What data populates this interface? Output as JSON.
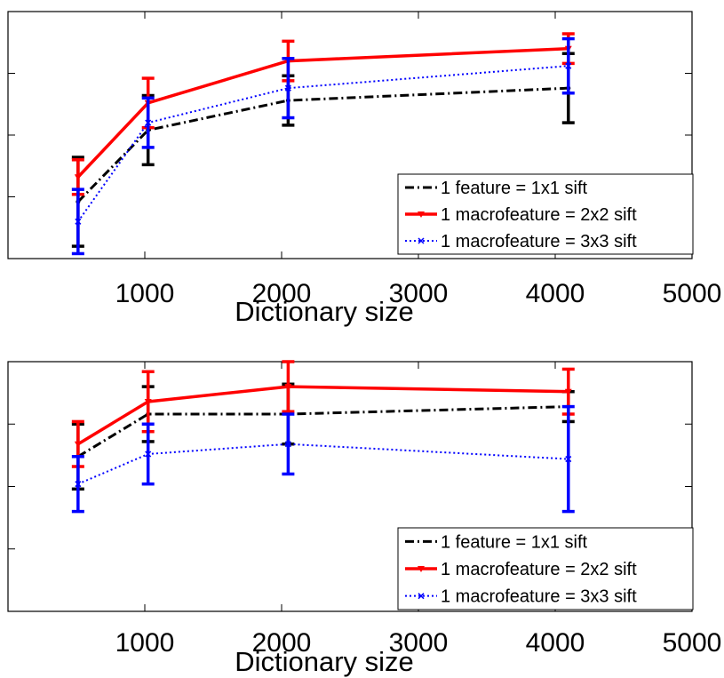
{
  "chart_data": [
    {
      "type": "line",
      "title": "",
      "xlabel": "Dictionary size",
      "ylabel": "",
      "xlim": [
        0,
        5000
      ],
      "ylim": [
        0,
        1
      ],
      "x_ticks": [
        "1000",
        "2000",
        "3000",
        "4000",
        "5000"
      ],
      "x_tick_values": [
        1000,
        2000,
        3000,
        4000,
        5000
      ],
      "y_tick_values": [
        0.25,
        0.5,
        0.75
      ],
      "grid": false,
      "legend_position": "bottom-right",
      "series": [
        {
          "name": "1 feature = 1x1 sift",
          "color": "#000000",
          "style": "dashdot",
          "marker": "dot",
          "x": [
            512,
            1024,
            2048,
            4096
          ],
          "y": [
            0.23,
            0.52,
            0.64,
            0.69
          ],
          "err": [
            0.18,
            0.14,
            0.1,
            0.14
          ]
        },
        {
          "name": "1 macrofeature = 2x2 sift",
          "color": "#ff0000",
          "style": "solid",
          "marker": "triangle-down",
          "x": [
            512,
            1024,
            2048,
            4096
          ],
          "y": [
            0.33,
            0.63,
            0.8,
            0.85
          ],
          "err": [
            0.07,
            0.1,
            0.08,
            0.06
          ]
        },
        {
          "name": "1 macrofeature = 3x3 sift",
          "color": "#0000ff",
          "style": "dotted",
          "marker": "x",
          "x": [
            512,
            1024,
            2048,
            4096
          ],
          "y": [
            0.15,
            0.55,
            0.69,
            0.78
          ],
          "err": [
            0.13,
            0.1,
            0.12,
            0.11
          ]
        }
      ]
    },
    {
      "type": "line",
      "title": "",
      "xlabel": "Dictionary size",
      "ylabel": "",
      "xlim": [
        0,
        5000
      ],
      "ylim": [
        0,
        1
      ],
      "x_ticks": [
        "1000",
        "2000",
        "3000",
        "4000",
        "5000"
      ],
      "x_tick_values": [
        1000,
        2000,
        3000,
        4000,
        5000
      ],
      "y_tick_values": [
        0.25,
        0.5,
        0.75
      ],
      "grid": false,
      "legend_position": "bottom-right",
      "series": [
        {
          "name": "1 feature = 1x1 sift",
          "color": "#000000",
          "style": "dashdot",
          "marker": "dot",
          "x": [
            512,
            1024,
            2048,
            4096
          ],
          "y": [
            0.62,
            0.79,
            0.79,
            0.82
          ],
          "err": [
            0.13,
            0.11,
            0.12,
            0.06
          ]
        },
        {
          "name": "1 macrofeature = 2x2 sift",
          "color": "#ff0000",
          "style": "solid",
          "marker": "triangle-down",
          "x": [
            512,
            1024,
            2048,
            4096
          ],
          "y": [
            0.67,
            0.84,
            0.9,
            0.88
          ],
          "err": [
            0.09,
            0.12,
            0.1,
            0.09
          ]
        },
        {
          "name": "1 macrofeature = 3x3 sift",
          "color": "#0000ff",
          "style": "dotted",
          "marker": "x",
          "x": [
            512,
            1024,
            2048,
            4096
          ],
          "y": [
            0.51,
            0.63,
            0.67,
            0.61
          ],
          "err": [
            0.11,
            0.12,
            0.12,
            0.21
          ]
        }
      ]
    }
  ]
}
